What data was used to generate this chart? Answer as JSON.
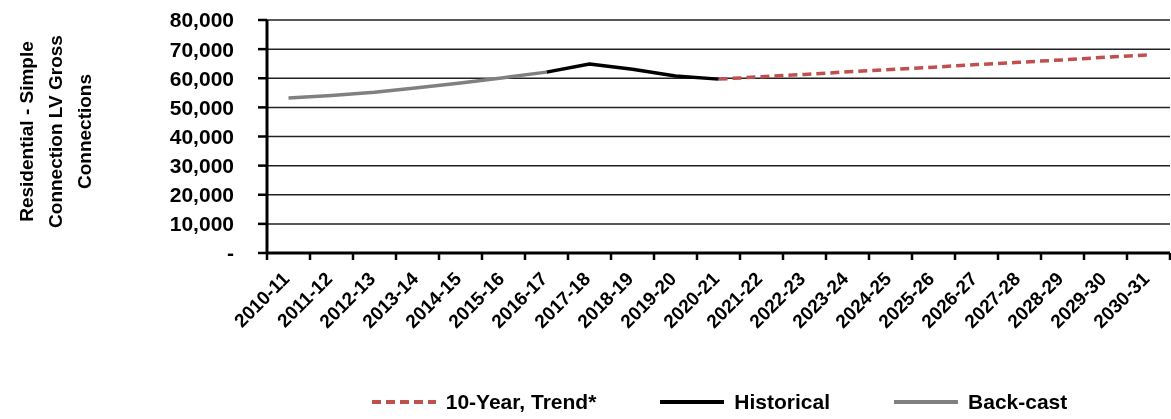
{
  "chart_data": {
    "type": "line",
    "categories": [
      "2010-11",
      "2011-12",
      "2012-13",
      "2013-14",
      "2014-15",
      "2015-16",
      "2016-17",
      "2017-18",
      "2018-19",
      "2019-20",
      "2020-21",
      "2021-22",
      "2022-23",
      "2023-24",
      "2024-25",
      "2025-26",
      "2026-27",
      "2027-28",
      "2028-29",
      "2029-30",
      "2030-31"
    ],
    "ylabel": "Residential - Simple Connection LV Gross Connections",
    "ylim": [
      0,
      80000
    ],
    "yticks": [
      {
        "value": 0,
        "label": "-"
      },
      {
        "value": 10000,
        "label": "10,000"
      },
      {
        "value": 20000,
        "label": "20,000"
      },
      {
        "value": 30000,
        "label": "30,000"
      },
      {
        "value": 40000,
        "label": "40,000"
      },
      {
        "value": 50000,
        "label": "50,000"
      },
      {
        "value": 60000,
        "label": "60,000"
      },
      {
        "value": 70000,
        "label": "70,000"
      },
      {
        "value": 80000,
        "label": "80,000"
      }
    ],
    "grid": "y",
    "legend": "bottom",
    "series": [
      {
        "name": "10-Year, Trend*",
        "color": "#c0504d",
        "line_style": "dashed",
        "values": [
          null,
          null,
          null,
          null,
          null,
          null,
          null,
          null,
          null,
          null,
          59700,
          60500,
          61300,
          62200,
          63000,
          63800,
          64700,
          65500,
          66300,
          67200,
          68000
        ]
      },
      {
        "name": "Historical",
        "color": "#000000",
        "line_style": "solid",
        "values": [
          null,
          null,
          null,
          null,
          null,
          null,
          62100,
          64900,
          63100,
          60800,
          59700,
          null,
          null,
          null,
          null,
          null,
          null,
          null,
          null,
          null,
          null
        ]
      },
      {
        "name": "Back-cast",
        "color": "#808080",
        "line_style": "solid",
        "values": [
          53200,
          54100,
          55200,
          56700,
          58400,
          60200,
          62100,
          null,
          null,
          null,
          null,
          null,
          null,
          null,
          null,
          null,
          null,
          null,
          null,
          null,
          null
        ]
      }
    ]
  }
}
